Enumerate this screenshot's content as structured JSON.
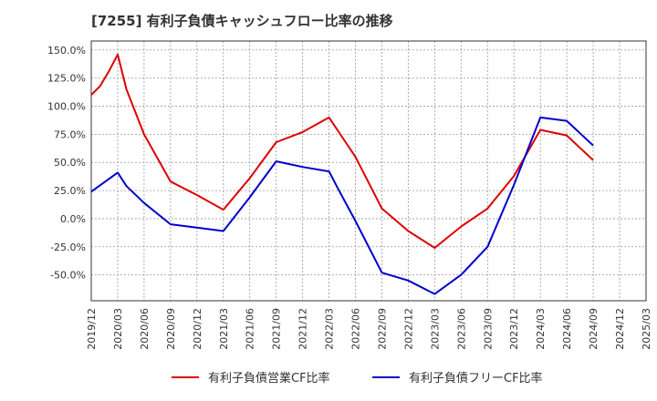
{
  "chart_data": {
    "type": "line",
    "title": "[7255]  有利子負債キャッシュフロー比率の推移",
    "x_ticks": [
      "2019/12",
      "2020/03",
      "2020/06",
      "2020/09",
      "2020/12",
      "2021/03",
      "2021/06",
      "2021/09",
      "2021/12",
      "2022/03",
      "2022/06",
      "2022/09",
      "2022/12",
      "2023/03",
      "2023/06",
      "2023/09",
      "2023/12",
      "2024/03",
      "2024/06",
      "2024/09",
      "2024/12",
      "2025/03"
    ],
    "y_ticks": [
      "150.0%",
      "125.0%",
      "100.0%",
      "75.0%",
      "50.0%",
      "25.0%",
      "0.0%",
      "-25.0%",
      "-50.0%"
    ],
    "y_tick_values": [
      150,
      125,
      100,
      75,
      50,
      25,
      0,
      -25,
      -50
    ],
    "ylim": [
      -73,
      158
    ],
    "x_range": [
      "2019/12",
      "2025/03"
    ],
    "grid": true,
    "legend_position": "bottom",
    "series": [
      {
        "name": "有利子負債営業CF比率",
        "color": "#dd0000",
        "points": [
          [
            "2019/12",
            110
          ],
          [
            "2020/01",
            118
          ],
          [
            "2020/02",
            131
          ],
          [
            "2020/03",
            146
          ],
          [
            "2020/04",
            115
          ],
          [
            "2020/06",
            75
          ],
          [
            "2020/09",
            33
          ],
          [
            "2020/12",
            21
          ],
          [
            "2021/03",
            8
          ],
          [
            "2021/06",
            36
          ],
          [
            "2021/09",
            68
          ],
          [
            "2021/12",
            77
          ],
          [
            "2022/03",
            90
          ],
          [
            "2022/06",
            55
          ],
          [
            "2022/09",
            9
          ],
          [
            "2022/12",
            -11
          ],
          [
            "2023/03",
            -26
          ],
          [
            "2023/06",
            -7
          ],
          [
            "2023/09",
            9
          ],
          [
            "2023/12",
            38
          ],
          [
            "2024/03",
            79
          ],
          [
            "2024/06",
            74
          ],
          [
            "2024/09",
            52
          ]
        ]
      },
      {
        "name": "有利子負債フリーCF比率",
        "color": "#0000cc",
        "points": [
          [
            "2019/12",
            24
          ],
          [
            "2020/03",
            41
          ],
          [
            "2020/04",
            29
          ],
          [
            "2020/06",
            14
          ],
          [
            "2020/09",
            -5
          ],
          [
            "2020/12",
            -8
          ],
          [
            "2021/03",
            -11
          ],
          [
            "2021/06",
            19
          ],
          [
            "2021/09",
            51
          ],
          [
            "2021/12",
            46
          ],
          [
            "2022/03",
            42
          ],
          [
            "2022/04",
            27
          ],
          [
            "2022/06",
            -2
          ],
          [
            "2022/09",
            -48
          ],
          [
            "2022/12",
            -55
          ],
          [
            "2023/03",
            -67
          ],
          [
            "2023/06",
            -50
          ],
          [
            "2023/09",
            -25
          ],
          [
            "2023/12",
            30
          ],
          [
            "2024/03",
            90
          ],
          [
            "2024/06",
            87
          ],
          [
            "2024/09",
            65
          ]
        ]
      }
    ]
  }
}
